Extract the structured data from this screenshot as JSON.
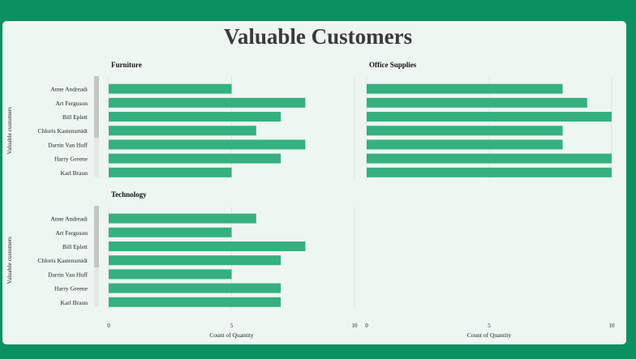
{
  "title": "Valuable Customers",
  "colors": {
    "background": "#0b9160",
    "card": "#eef6f2",
    "bar": "#36b07f",
    "title": "#3a3a3a"
  },
  "chart_data": {
    "type": "bar",
    "orientation": "horizontal",
    "y_axis_title": "Valuable customers",
    "x_axis_title": "Count of Quantity",
    "xlim": [
      0,
      10
    ],
    "x_ticks": [
      0,
      5,
      10
    ],
    "grid": true,
    "customers": [
      "Anne Andreadi",
      "Art Ferguson",
      "Bill Eplett",
      "Chloris Kastensmidt",
      "Darrin Van Huff",
      "Harry Greene",
      "Karl Braun"
    ],
    "panels": [
      {
        "category": "Furniture",
        "values": [
          5,
          8,
          7,
          6,
          8,
          7,
          5
        ]
      },
      {
        "category": "Office Supplies",
        "values": [
          8,
          9,
          10,
          8,
          8,
          10,
          10
        ]
      },
      {
        "category": "Technology",
        "values": [
          6,
          5,
          8,
          7,
          5,
          7,
          7
        ]
      }
    ]
  }
}
